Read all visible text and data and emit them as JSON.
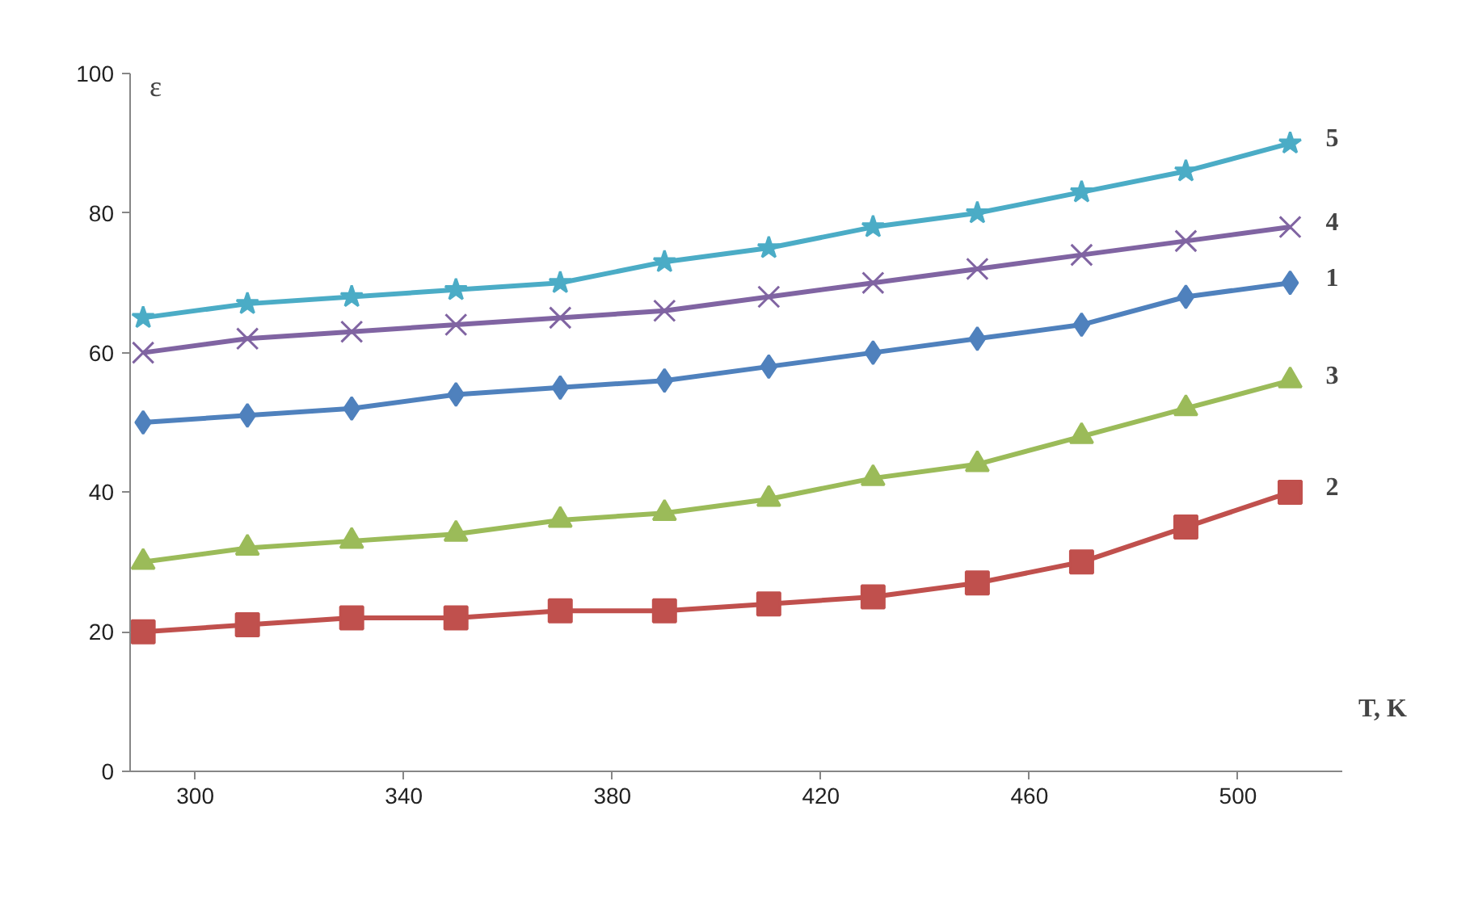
{
  "chart_data": {
    "type": "line",
    "xlabel": "T, K",
    "ylabel": "ε",
    "x": [
      290,
      310,
      330,
      350,
      370,
      390,
      410,
      430,
      450,
      470,
      490,
      510
    ],
    "xlim": [
      287.5,
      520
    ],
    "xticks": [
      300,
      340,
      380,
      420,
      460,
      500
    ],
    "ylim": [
      0,
      100
    ],
    "yticks": [
      0,
      20,
      40,
      60,
      80,
      100
    ],
    "grid": false,
    "legend": false,
    "series": [
      {
        "name": "5",
        "color": "#4bacc6",
        "marker": "star",
        "values": [
          65,
          67,
          68,
          69,
          70,
          73,
          75,
          78,
          80,
          83,
          86,
          90
        ]
      },
      {
        "name": "4",
        "color": "#8064a2",
        "marker": "cross",
        "values": [
          60,
          62,
          63,
          64,
          65,
          66,
          68,
          70,
          72,
          74,
          76,
          78
        ]
      },
      {
        "name": "1",
        "color": "#4f81bd",
        "marker": "diamond",
        "values": [
          50,
          51,
          52,
          54,
          55,
          56,
          58,
          60,
          62,
          64,
          68,
          70
        ]
      },
      {
        "name": "3",
        "color": "#9bbb59",
        "marker": "triangle",
        "values": [
          30,
          32,
          33,
          34,
          36,
          37,
          39,
          42,
          44,
          48,
          52,
          56
        ]
      },
      {
        "name": "2",
        "color": "#c0504d",
        "marker": "square",
        "values": [
          20,
          21,
          22,
          22,
          23,
          23,
          24,
          25,
          27,
          30,
          35,
          40
        ]
      }
    ]
  }
}
